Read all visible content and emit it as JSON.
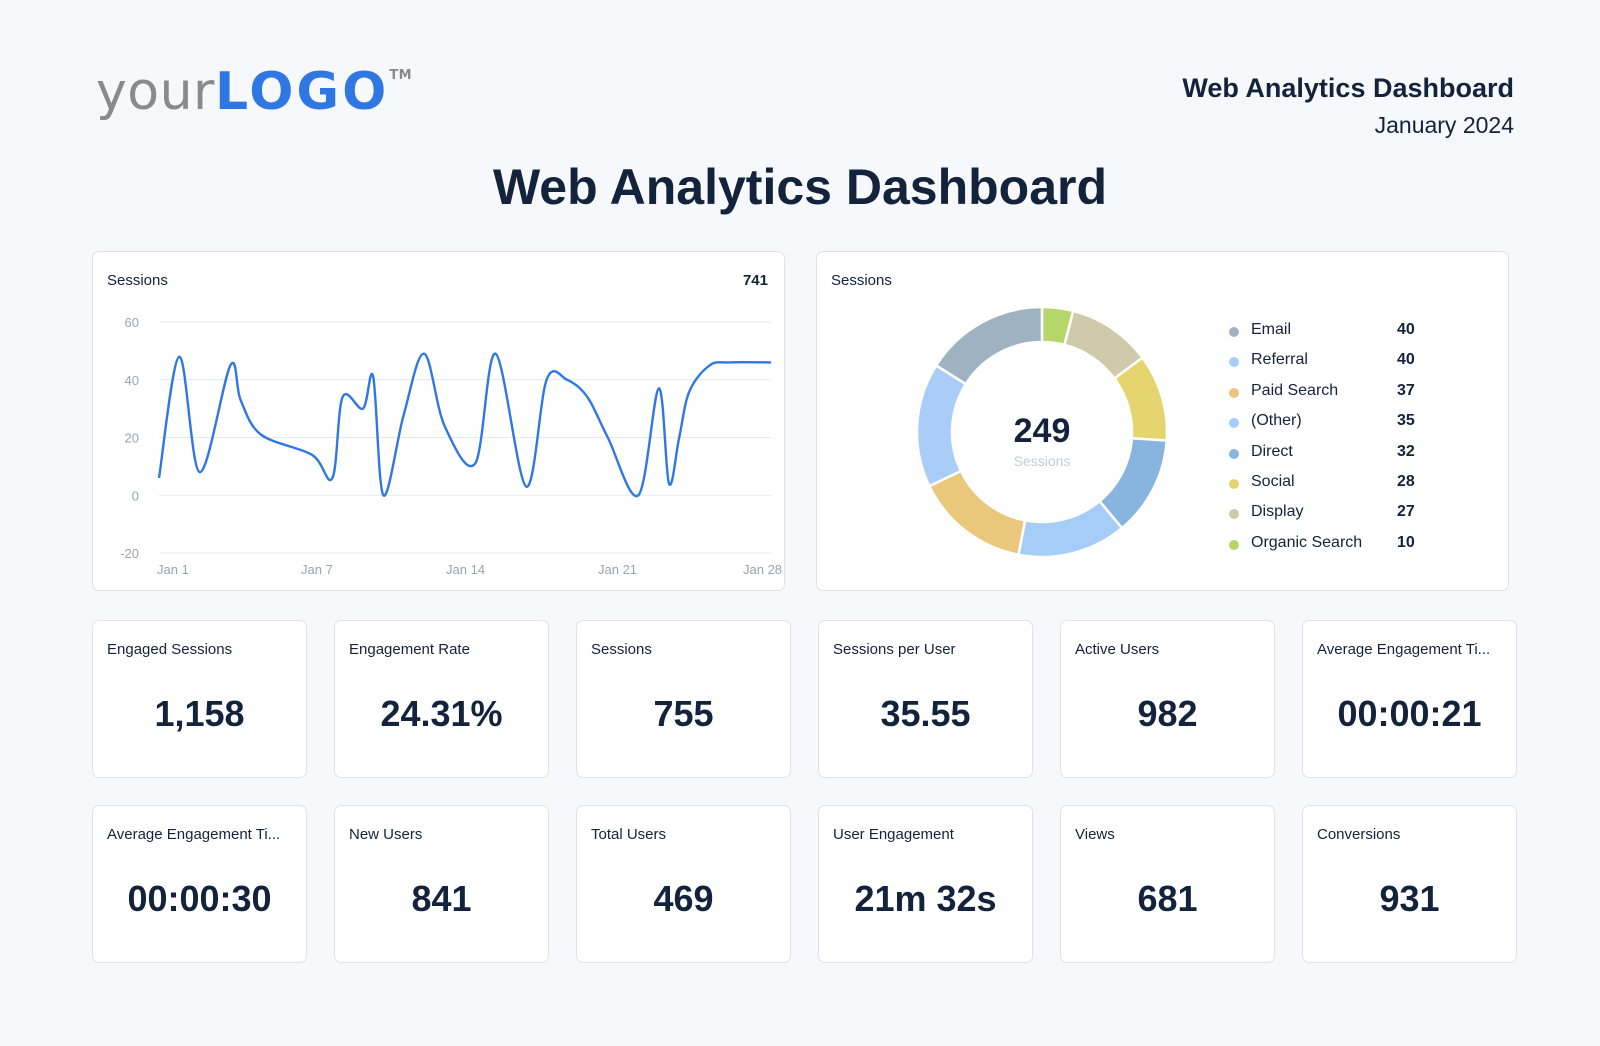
{
  "logo": {
    "prefix": "your",
    "brand": "LOGO",
    "tm": "TM"
  },
  "header": {
    "title": "Web Analytics Dashboard",
    "date": "January 2024"
  },
  "page_title": "Web Analytics Dashboard",
  "line_card": {
    "label": "Sessions",
    "total": "741"
  },
  "donut_card": {
    "label": "Sessions",
    "center_value": "249",
    "center_label": "Sessions"
  },
  "kpis_row1": [
    {
      "label": "Engaged Sessions",
      "value": "1,158"
    },
    {
      "label": "Engagement Rate",
      "value": "24.31%"
    },
    {
      "label": "Sessions",
      "value": "755"
    },
    {
      "label": "Sessions per User",
      "value": "35.55"
    },
    {
      "label": "Active Users",
      "value": "982"
    },
    {
      "label": "Average Engagement Ti...",
      "value": "00:00:21"
    }
  ],
  "kpis_row2": [
    {
      "label": "Average Engagement Ti...",
      "value": "00:00:30"
    },
    {
      "label": "New Users",
      "value": "841"
    },
    {
      "label": "Total Users",
      "value": "469"
    },
    {
      "label": "User Engagement",
      "value": "21m 32s"
    },
    {
      "label": "Views",
      "value": "681"
    },
    {
      "label": "Conversions",
      "value": "931"
    }
  ],
  "chart_data": [
    {
      "type": "line",
      "title": "Sessions",
      "total": "741",
      "x_tick_labels": [
        "Jan 1",
        "Jan 7",
        "Jan 14",
        "Jan 21",
        "Jan 28"
      ],
      "y_tick_labels": [
        "60",
        "40",
        "20",
        "0",
        "-20"
      ],
      "ylim": [
        -20,
        60
      ],
      "xlim": [
        1,
        31
      ],
      "grid": true,
      "color": "#2f78e4",
      "x": [
        1,
        2,
        3,
        4.5,
        5,
        6,
        8.5,
        9.5,
        10,
        11,
        11.5,
        12,
        13,
        14,
        15,
        16.5,
        17.5,
        19,
        20,
        21,
        22,
        23,
        24.5,
        25.5,
        26,
        26.5,
        27,
        28,
        29,
        31
      ],
      "y": [
        6,
        48,
        8,
        45,
        33,
        21,
        14,
        6,
        34,
        30,
        41,
        0,
        28,
        49,
        24,
        11,
        49,
        3,
        40,
        40,
        34,
        20,
        0,
        37,
        4,
        20,
        36,
        45,
        46,
        46
      ]
    },
    {
      "type": "pie",
      "title": "Sessions",
      "center_value": "249",
      "center_label": "Sessions",
      "slices": [
        {
          "label": "Email",
          "value": 40,
          "color": "#9fb2c2"
        },
        {
          "label": "Referral",
          "value": 40,
          "color": "#a9cdf6"
        },
        {
          "label": "Paid Search",
          "value": 37,
          "color": "#e9c87c"
        },
        {
          "label": "(Other)",
          "value": 35,
          "color": "#a6cdf6"
        },
        {
          "label": "Direct",
          "value": 32,
          "color": "#87b5e0"
        },
        {
          "label": "Social",
          "value": 28,
          "color": "#e6d56f"
        },
        {
          "label": "Display",
          "value": 27,
          "color": "#cfcbaa"
        },
        {
          "label": "Organic Search",
          "value": 10,
          "color": "#b7d66a"
        }
      ]
    }
  ]
}
